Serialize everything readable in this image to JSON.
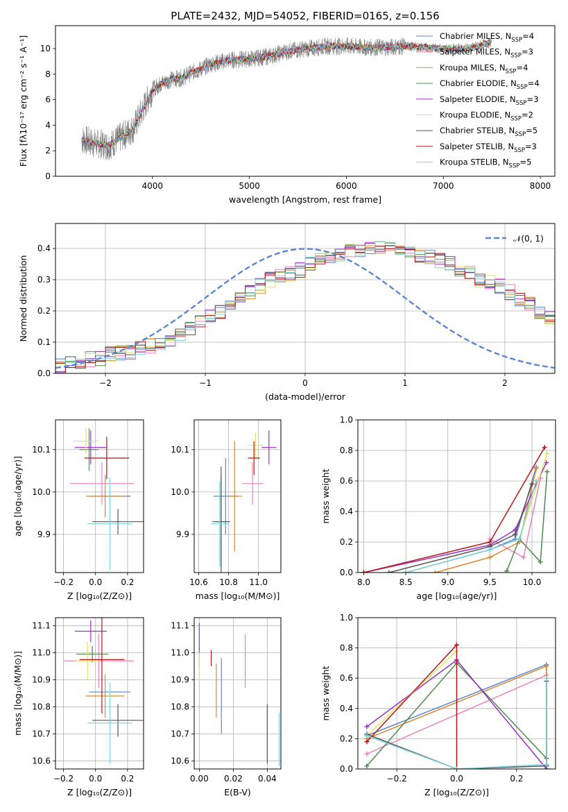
{
  "figure_title": "PLATE=2432, MJD=54052, FIBERID=0165, z=0.156",
  "models": [
    {
      "label": "Chabrier MILES, N",
      "nssp": "4",
      "color": "#5b86d1"
    },
    {
      "label": "Salpeter MILES, N",
      "nssp": "3",
      "color": "#ee82be"
    },
    {
      "label": "Kroupa MILES, N",
      "nssp": "4",
      "color": "#d9892b"
    },
    {
      "label": "Chabrier ELODIE, N",
      "nssp": "4",
      "color": "#4e8a4e"
    },
    {
      "label": "Salpeter ELODIE, N",
      "nssp": "3",
      "color": "#9b30c8"
    },
    {
      "label": "Kroupa ELODIE, N",
      "nssp": "2",
      "color": "#e4e45a"
    },
    {
      "label": "Chabrier STELIB, N",
      "nssp": "5",
      "color": "#555555"
    },
    {
      "label": "Salpeter STELIB, N",
      "nssp": "3",
      "color": "#b31616"
    },
    {
      "label": "Kroupa STELIB, N",
      "nssp": "5",
      "color": "#7fd2dd"
    }
  ],
  "chart_data": [
    {
      "id": "spectrum",
      "type": "line",
      "xlabel": "wavelength [Angstrom, rest frame]",
      "ylabel": "Flux [fλ10⁻¹⁷ erg cm⁻² s⁻¹ A⁻¹]",
      "xlim": [
        3000,
        8150
      ],
      "ylim": [
        0,
        11.8
      ],
      "xticks": [
        4000,
        5000,
        6000,
        7000,
        8000
      ],
      "yticks": [
        0,
        2,
        4,
        6,
        8,
        10
      ],
      "data_color": "#808080",
      "continuum": {
        "x": [
          3270,
          3400,
          3550,
          3700,
          3800,
          3900,
          4000,
          4100,
          4200,
          4300,
          4400,
          4500,
          4600,
          4800,
          5000,
          5200,
          5400,
          5600,
          5800,
          6000,
          6200,
          6400,
          6600,
          6800,
          7000,
          7200,
          7300,
          7400,
          7500
        ],
        "y": [
          2.9,
          2.6,
          2.4,
          3.2,
          3.7,
          5.2,
          6.8,
          7.3,
          7.6,
          7.7,
          8.1,
          8.4,
          8.8,
          9.1,
          9.2,
          9.4,
          9.8,
          10.0,
          10.2,
          10.2,
          10.1,
          10.1,
          10.2,
          10.1,
          10.0,
          10.0,
          10.1,
          10.3,
          10.5
        ]
      }
    },
    {
      "id": "residuals",
      "type": "step",
      "xlabel": "(data-model)/error",
      "ylabel": "Normed distribution",
      "xlim": [
        -2.5,
        2.5
      ],
      "ylim": [
        0,
        0.48
      ],
      "xticks": [
        -2,
        -1,
        0,
        1,
        2
      ],
      "yticks": [
        0.0,
        0.1,
        0.2,
        0.3,
        0.4
      ],
      "bin_edges_start": -2.5,
      "bin_width": 0.1,
      "base_values": [
        0.025,
        0.03,
        0.035,
        0.045,
        0.05,
        0.06,
        0.065,
        0.07,
        0.08,
        0.09,
        0.1,
        0.11,
        0.12,
        0.14,
        0.16,
        0.18,
        0.2,
        0.22,
        0.24,
        0.26,
        0.28,
        0.3,
        0.31,
        0.32,
        0.33,
        0.35,
        0.36,
        0.37,
        0.38,
        0.39,
        0.39,
        0.4,
        0.4,
        0.4,
        0.39,
        0.39,
        0.38,
        0.37,
        0.36,
        0.35,
        0.33,
        0.32,
        0.3,
        0.29,
        0.28,
        0.26,
        0.24,
        0.22,
        0.2,
        0.18,
        0.16,
        0.14,
        0.12,
        0.11,
        0.1,
        0.09,
        0.08,
        0.07,
        0.06,
        0.05,
        0.045,
        0.04,
        0.035,
        0.03,
        0.03,
        0.025,
        0.025,
        0.02,
        0.02,
        0.02
      ],
      "gaussian_label": "𝒩(0, 1)",
      "gaussian_color": "#5b86d1"
    },
    {
      "id": "age_vs_Z",
      "type": "errorbar",
      "xlabel": "Z [log₁₀(Z/Z⊙)]",
      "ylabel": "age  [log₁₀(age/yr)]",
      "xlim": [
        -0.25,
        0.3
      ],
      "ylim": [
        9.81,
        10.17
      ],
      "xticks": [
        -0.2,
        0.0,
        0.2
      ],
      "yticks": [
        9.9,
        10.0,
        10.1
      ],
      "points": [
        {
          "m": 0,
          "x": 0.09,
          "y": 9.99,
          "xerr": 0.13,
          "yerr": 0.02
        },
        {
          "m": 1,
          "x": 0.04,
          "y": 10.02,
          "xerr": 0.2,
          "yerr": 0.05
        },
        {
          "m": 2,
          "x": 0.06,
          "y": 9.99,
          "xerr": 0.12,
          "yerr": 0.05
        },
        {
          "m": 3,
          "x": -0.04,
          "y": 10.1,
          "xerr": 0.06,
          "yerr": 0.05
        },
        {
          "m": 4,
          "x": -0.03,
          "y": 10.105,
          "xerr": 0.1,
          "yerr": 0.04
        },
        {
          "m": 5,
          "x": -0.06,
          "y": 10.12,
          "xerr": 0.08,
          "yerr": 0.03
        },
        {
          "m": 6,
          "x": 0.14,
          "y": 9.93,
          "xerr": 0.16,
          "yerr": 0.03
        },
        {
          "m": 7,
          "x": 0.07,
          "y": 10.08,
          "xerr": 0.14,
          "yerr": 0.05
        },
        {
          "m": 8,
          "x": 0.09,
          "y": 9.925,
          "xerr": 0.14,
          "yerr": 0.11
        }
      ]
    },
    {
      "id": "age_vs_mass",
      "type": "errorbar",
      "xlabel": "mass [log₁₀(M/M⊙)]",
      "ylabel": "",
      "xlim": [
        10.57,
        11.15
      ],
      "ylim": [
        9.81,
        10.17
      ],
      "xticks": [
        10.6,
        10.8,
        11.0
      ],
      "yticks": [
        9.9,
        10.0,
        10.1
      ],
      "points": [
        {
          "m": 0,
          "x": 10.78,
          "y": 9.99,
          "xerr": 0.08,
          "yerr": 0.09
        },
        {
          "m": 1,
          "x": 10.96,
          "y": 10.02,
          "xerr": 0.07,
          "yerr": 0.05
        },
        {
          "m": 2,
          "x": 10.84,
          "y": 9.99,
          "xerr": 0.05,
          "yerr": 0.13
        },
        {
          "m": 3,
          "x": 10.75,
          "y": 9.93,
          "xerr": 0.04,
          "yerr": 0.11
        },
        {
          "m": 4,
          "x": 11.07,
          "y": 10.105,
          "xerr": 0.05,
          "yerr": 0.04
        },
        {
          "m": 5,
          "x": 10.98,
          "y": 10.11,
          "xerr": 0.05,
          "yerr": 0.03
        },
        {
          "m": 6,
          "x": 10.75,
          "y": 9.93,
          "xerr": 0.06,
          "yerr": 0.13
        },
        {
          "m": 7,
          "x": 10.97,
          "y": 10.08,
          "xerr": 0.04,
          "yerr": 0.04
        },
        {
          "m": 8,
          "x": 10.74,
          "y": 9.925,
          "xerr": 0.06,
          "yerr": 0.1
        }
      ]
    },
    {
      "id": "weight_vs_age",
      "type": "line-markers",
      "xlabel": "age  [log₁₀(age/yr)]",
      "ylabel": "mass weight",
      "xlim": [
        7.93,
        10.28
      ],
      "ylim": [
        0,
        1
      ],
      "xticks": [
        8.0,
        8.5,
        9.0,
        9.5,
        10.0
      ],
      "yticks": [
        0.0,
        0.2,
        0.4,
        0.6,
        0.8,
        1.0
      ],
      "series": [
        {
          "m": 0,
          "x": [
            8.5,
            9.5,
            9.8,
            10.05
          ],
          "y": [
            0.0,
            0.15,
            0.22,
            0.69
          ]
        },
        {
          "m": 1,
          "x": [
            9.5,
            9.9,
            10.1
          ],
          "y": [
            0.22,
            0.1,
            0.62
          ]
        },
        {
          "m": 2,
          "x": [
            8.85,
            9.5,
            9.85,
            10.05
          ],
          "y": [
            0.0,
            0.1,
            0.2,
            0.68
          ]
        },
        {
          "m": 3,
          "x": [
            9.7,
            9.85,
            10.1,
            10.18
          ],
          "y": [
            0.01,
            0.22,
            0.07,
            0.66
          ]
        },
        {
          "m": 4,
          "x": [
            8.0,
            9.5,
            9.8,
            10.17
          ],
          "y": [
            0.0,
            0.18,
            0.28,
            0.72
          ]
        },
        {
          "m": 5,
          "x": [
            9.85,
            10.18
          ],
          "y": [
            0.22,
            0.78
          ]
        },
        {
          "m": 6,
          "x": [
            8.3,
            9.5,
            9.8,
            10.0
          ],
          "y": [
            0.0,
            0.17,
            0.25,
            0.58
          ]
        },
        {
          "m": 7,
          "x": [
            8.0,
            9.5,
            10.15
          ],
          "y": [
            0.0,
            0.2,
            0.82
          ]
        },
        {
          "m": 8,
          "x": [
            8.5,
            9.5,
            9.85,
            10.05
          ],
          "y": [
            0.0,
            0.15,
            0.22,
            0.6
          ]
        }
      ]
    },
    {
      "id": "mass_vs_Z",
      "type": "errorbar",
      "xlabel": "Z [log₁₀(Z/Z⊙)]",
      "ylabel": "mass [log₁₀(M/M⊙)]",
      "xlim": [
        -0.25,
        0.3
      ],
      "ylim": [
        10.57,
        11.13
      ],
      "xticks": [
        -0.2,
        0.0,
        0.2
      ],
      "yticks": [
        10.6,
        10.7,
        10.8,
        10.9,
        11.0,
        11.1
      ],
      "points": [
        {
          "m": 0,
          "x": 0.09,
          "y": 10.855,
          "xerr": 0.13,
          "yerr": 0.0
        },
        {
          "m": 1,
          "x": 0.02,
          "y": 10.97,
          "xerr": 0.22,
          "yerr": 0.1
        },
        {
          "m": 2,
          "x": 0.06,
          "y": 10.84,
          "xerr": 0.12,
          "yerr": 0.08
        },
        {
          "m": 3,
          "x": -0.02,
          "y": 10.995,
          "xerr": 0.1,
          "yerr": 0.03
        },
        {
          "m": 4,
          "x": -0.03,
          "y": 11.08,
          "xerr": 0.1,
          "yerr": 0.04
        },
        {
          "m": 5,
          "x": -0.05,
          "y": 10.97,
          "xerr": 0.07,
          "yerr": 0.07
        },
        {
          "m": 6,
          "x": 0.14,
          "y": 10.75,
          "xerr": 0.16,
          "yerr": 0.06
        },
        {
          "m": 7,
          "x": 0.04,
          "y": 10.975,
          "xerr": 0.14,
          "yerr": 0.2
        },
        {
          "m": 8,
          "x": 0.09,
          "y": 10.74,
          "xerr": 0.14,
          "yerr": 0.15
        }
      ]
    },
    {
      "id": "mass_vs_ebv",
      "type": "errorbar",
      "xlabel": "E(B-V)",
      "ylabel": "",
      "xlim": [
        -0.003,
        0.048
      ],
      "ylim": [
        10.57,
        11.13
      ],
      "xticks": [
        0.0,
        0.02,
        0.04
      ],
      "yticks": [
        10.6,
        10.7,
        10.8,
        10.9,
        11.0,
        11.1
      ],
      "points": [
        {
          "m": 0,
          "x": 0.013,
          "y": 10.84,
          "xerr": 0,
          "yerr": 0.14
        },
        {
          "m": 1,
          "x": 0.027,
          "y": 10.97,
          "xerr": 0,
          "yerr": 0.1
        },
        {
          "m": 2,
          "x": 0.01,
          "y": 10.86,
          "xerr": 0,
          "yerr": 0.1
        },
        {
          "m": 3,
          "x": 0.0,
          "y": 10.98,
          "xerr": 0,
          "yerr": 0.04
        },
        {
          "m": 4,
          "x": 0.0,
          "y": 11.06,
          "xerr": 0,
          "yerr": 0.05
        },
        {
          "m": 5,
          "x": 0.0,
          "y": 10.95,
          "xerr": 0,
          "yerr": 0.05
        },
        {
          "m": 6,
          "x": 0.04,
          "y": 10.7,
          "xerr": 0,
          "yerr": 0.11
        },
        {
          "m": 7,
          "x": 0.007,
          "y": 10.98,
          "xerr": 0,
          "yerr": 0.03
        },
        {
          "m": 8,
          "x": 0.047,
          "y": 10.68,
          "xerr": 0,
          "yerr": 0.1
        }
      ]
    },
    {
      "id": "weight_vs_Z",
      "type": "line-markers",
      "xlabel": "Z [log₁₀(Z/Z⊙)]",
      "ylabel": "mass weight",
      "xlim": [
        -0.33,
        0.33
      ],
      "ylim": [
        0,
        1
      ],
      "xticks": [
        -0.2,
        0.0,
        0.2
      ],
      "yticks": [
        0.0,
        0.2,
        0.4,
        0.6,
        0.8,
        1.0
      ],
      "series": [
        {
          "m": 0,
          "x": [
            -0.3,
            0.3,
            0.3
          ],
          "y": [
            0.22,
            0.69,
            0.02
          ]
        },
        {
          "m": 1,
          "x": [
            -0.3,
            0.3
          ],
          "y": [
            0.1,
            0.62
          ]
        },
        {
          "m": 2,
          "x": [
            -0.3,
            0.3,
            0.3
          ],
          "y": [
            0.2,
            0.68,
            0.02
          ]
        },
        {
          "m": 3,
          "x": [
            -0.3,
            0.0,
            0.3,
            0.3
          ],
          "y": [
            0.02,
            0.7,
            0.07,
            0.0
          ]
        },
        {
          "m": 4,
          "x": [
            -0.3,
            0.0,
            0.3
          ],
          "y": [
            0.28,
            0.72,
            0.0
          ]
        },
        {
          "m": 5,
          "x": [
            -0.3,
            0.0
          ],
          "y": [
            0.22,
            0.78
          ]
        },
        {
          "m": 6,
          "x": [
            -0.3,
            0.0,
            0.3,
            0.3
          ],
          "y": [
            0.23,
            0.0,
            0.02,
            0.58
          ]
        },
        {
          "m": 7,
          "x": [
            -0.3,
            0.0,
            0.0
          ],
          "y": [
            0.18,
            0.82,
            0.0
          ]
        },
        {
          "m": 8,
          "x": [
            -0.3,
            0.0,
            0.3,
            0.3
          ],
          "y": [
            0.22,
            0.0,
            0.03,
            0.6
          ]
        }
      ]
    }
  ]
}
